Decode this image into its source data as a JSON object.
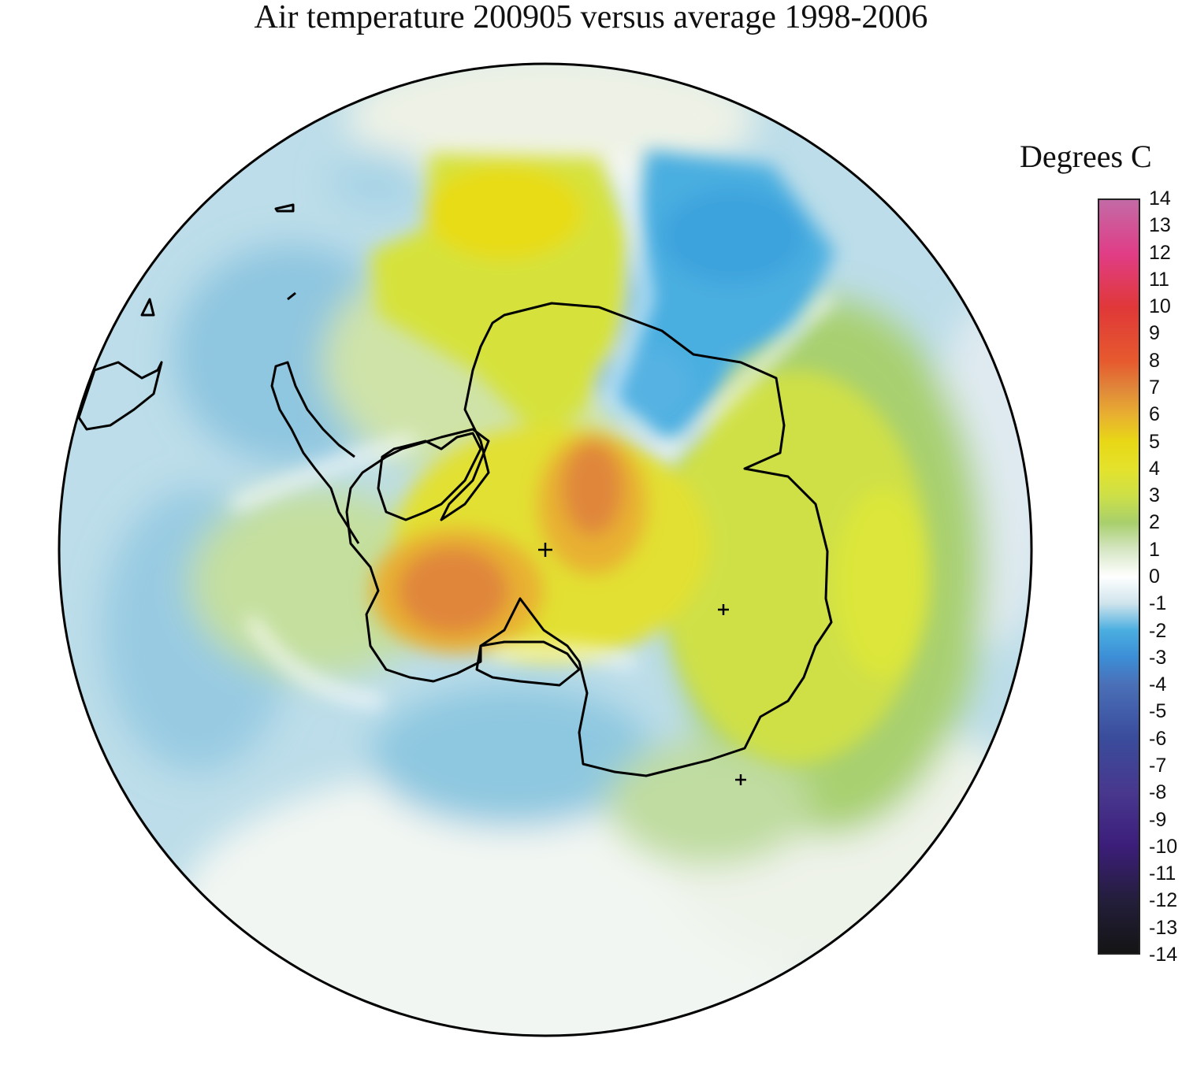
{
  "title": "Air temperature 200905 versus average 1998-2006",
  "legend": {
    "title": "Degrees C",
    "ticks": [
      "14",
      "13",
      "12",
      "11",
      "10",
      "9",
      "8",
      "7",
      "6",
      "5",
      "4",
      "3",
      "2",
      "1",
      "0",
      "-1",
      "-2",
      "-3",
      "-4",
      "-5",
      "-6",
      "-7",
      "-8",
      "-9",
      "-10",
      "-11",
      "-12",
      "-13",
      "-14"
    ],
    "range": [
      -14,
      14
    ],
    "colors": {
      "14": "#c36aa6",
      "12": "#e03d86",
      "10": "#e03838",
      "8": "#e65a2e",
      "7": "#e0863a",
      "6": "#e8b030",
      "5": "#e8d816",
      "4": "#e4e22c",
      "3": "#cde048",
      "2": "#a8cf6c",
      "1": "#d6e6c4",
      "0": "#ffffff",
      "-1": "#cfe4ec",
      "-2": "#4aaee0",
      "-3": "#3c8ed6",
      "-4": "#4a70b8",
      "-6": "#3a4c9c",
      "-8": "#48388e",
      "-10": "#3c1e7a",
      "-12": "#241e3c",
      "-14": "#141414"
    }
  },
  "map": {
    "projection": "south polar stereographic",
    "variable": "air temperature anomaly",
    "background_color": "#b8dbe8"
  }
}
